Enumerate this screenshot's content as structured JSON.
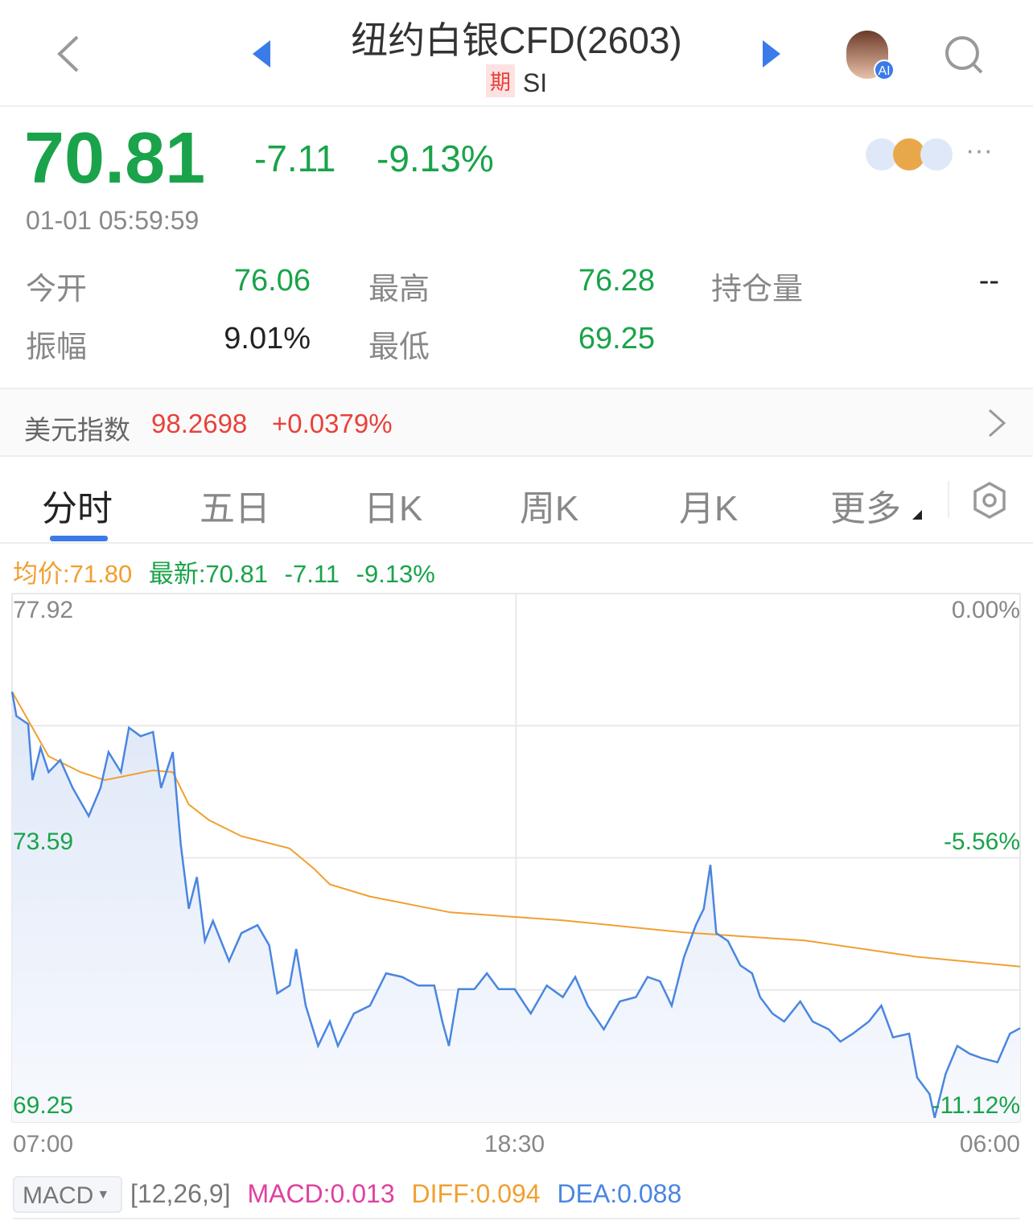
{
  "header": {
    "title": "纽约白银CFD(2603)",
    "badge": "期",
    "code": "SI",
    "icons": [
      "back-icon",
      "prev-arrow-icon",
      "next-arrow-icon",
      "ai-avatar",
      "search-icon"
    ],
    "ai_label": "AI"
  },
  "quote": {
    "price": "70.81",
    "change": "-7.11",
    "change_pct": "-9.13%",
    "time": "01-01 05:59:59"
  },
  "stats": {
    "open_label": "今开",
    "open": "76.06",
    "high_label": "最高",
    "high": "76.28",
    "oi_label": "持仓量",
    "oi": "--",
    "amp_label": "振幅",
    "amp": "9.01%",
    "low_label": "最低",
    "low": "69.25"
  },
  "index": {
    "label": "美元指数",
    "value": "98.2698",
    "change": "+0.0379%"
  },
  "tabs": [
    {
      "label": "分时"
    },
    {
      "label": "五日"
    },
    {
      "label": "日K"
    },
    {
      "label": "周K"
    },
    {
      "label": "月K"
    },
    {
      "label": "更多"
    }
  ],
  "legend": {
    "avg": "均价:71.80",
    "last": "最新:70.81",
    "chg": "-7.11",
    "pct": "-9.13%"
  },
  "colors": {
    "up": "#e8413b",
    "down": "#1aa34a",
    "price_line": "#4a86e0",
    "avg_line": "#f0a030",
    "accent": "#3a7bea"
  },
  "chart_data": {
    "type": "line",
    "y_ticks_left": [
      "77.92",
      "73.59",
      "69.25"
    ],
    "y_ticks_right": [
      "0.00%",
      "-5.56%",
      "-11.12%"
    ],
    "x_ticks": [
      "07:00",
      "18:30",
      "06:00"
    ],
    "ylim": [
      69.25,
      77.92
    ],
    "xlim": [
      "07:00",
      "06:00"
    ],
    "grid": true,
    "series": [
      {
        "name": "最新",
        "points": [
          [
            "07:00",
            76.31
          ],
          [
            "07:06",
            75.91
          ],
          [
            "07:22",
            75.78
          ],
          [
            "07:28",
            74.86
          ],
          [
            "07:39",
            75.39
          ],
          [
            "07:50",
            74.99
          ],
          [
            "08:06",
            75.19
          ],
          [
            "08:23",
            74.73
          ],
          [
            "08:45",
            74.27
          ],
          [
            "09:01",
            74.73
          ],
          [
            "09:12",
            75.32
          ],
          [
            "09:29",
            74.99
          ],
          [
            "09:40",
            75.72
          ],
          [
            "09:56",
            75.58
          ],
          [
            "10:13",
            75.65
          ],
          [
            "10:24",
            74.73
          ],
          [
            "10:40",
            75.32
          ],
          [
            "10:51",
            73.8
          ],
          [
            "11:02",
            72.75
          ],
          [
            "11:13",
            73.27
          ],
          [
            "11:24",
            72.22
          ],
          [
            "11:35",
            72.55
          ],
          [
            "11:57",
            71.89
          ],
          [
            "12:14",
            72.35
          ],
          [
            "12:36",
            72.48
          ],
          [
            "12:52",
            72.15
          ],
          [
            "13:03",
            71.36
          ],
          [
            "13:20",
            71.49
          ],
          [
            "13:29",
            72.09
          ],
          [
            "13:42",
            71.16
          ],
          [
            "13:59",
            70.5
          ],
          [
            "14:15",
            70.9
          ],
          [
            "14:26",
            70.5
          ],
          [
            "14:48",
            71.03
          ],
          [
            "15:10",
            71.16
          ],
          [
            "15:32",
            71.69
          ],
          [
            "15:54",
            71.63
          ],
          [
            "16:16",
            71.49
          ],
          [
            "16:38",
            71.49
          ],
          [
            "16:49",
            70.9
          ],
          [
            "16:58",
            70.5
          ],
          [
            "17:11",
            71.43
          ],
          [
            "17:33",
            71.43
          ],
          [
            "17:50",
            71.69
          ],
          [
            "18:06",
            71.43
          ],
          [
            "18:28",
            71.43
          ],
          [
            "18:50",
            71.03
          ],
          [
            "19:12",
            71.49
          ],
          [
            "19:34",
            71.3
          ],
          [
            "19:51",
            71.63
          ],
          [
            "20:08",
            71.16
          ],
          [
            "20:30",
            70.77
          ],
          [
            "20:52",
            71.23
          ],
          [
            "21:14",
            71.3
          ],
          [
            "21:30",
            71.63
          ],
          [
            "21:47",
            71.56
          ],
          [
            "22:03",
            71.16
          ],
          [
            "22:20",
            71.96
          ],
          [
            "22:36",
            72.48
          ],
          [
            "22:47",
            72.75
          ],
          [
            "22:56",
            73.47
          ],
          [
            "23:04",
            72.35
          ],
          [
            "23:20",
            72.22
          ],
          [
            "23:37",
            71.82
          ],
          [
            "23:53",
            71.69
          ],
          [
            "00:04",
            71.3
          ],
          [
            "00:21",
            71.03
          ],
          [
            "00:37",
            70.9
          ],
          [
            "00:59",
            71.23
          ],
          [
            "01:16",
            70.9
          ],
          [
            "01:38",
            70.77
          ],
          [
            "01:54",
            70.57
          ],
          [
            "02:11",
            70.7
          ],
          [
            "02:33",
            70.9
          ],
          [
            "02:50",
            71.16
          ],
          [
            "03:06",
            70.64
          ],
          [
            "03:28",
            70.7
          ],
          [
            "03:39",
            69.98
          ],
          [
            "03:56",
            69.71
          ],
          [
            "04:03",
            69.32
          ],
          [
            "04:18",
            70.04
          ],
          [
            "04:34",
            70.5
          ],
          [
            "04:51",
            70.37
          ],
          [
            "05:07",
            70.3
          ],
          [
            "05:29",
            70.23
          ],
          [
            "05:46",
            70.7
          ],
          [
            "06:00",
            70.79
          ]
        ]
      },
      {
        "name": "均价",
        "points": [
          [
            "07:00",
            76.31
          ],
          [
            "07:50",
            75.25
          ],
          [
            "08:34",
            74.99
          ],
          [
            "09:07",
            74.86
          ],
          [
            "10:13",
            75.02
          ],
          [
            "10:40",
            74.99
          ],
          [
            "11:02",
            74.46
          ],
          [
            "11:30",
            74.2
          ],
          [
            "12:14",
            73.94
          ],
          [
            "13:20",
            73.74
          ],
          [
            "13:53",
            73.41
          ],
          [
            "14:15",
            73.15
          ],
          [
            "15:10",
            72.95
          ],
          [
            "17:00",
            72.69
          ],
          [
            "19:34",
            72.56
          ],
          [
            "22:20",
            72.36
          ],
          [
            "01:05",
            72.23
          ],
          [
            "03:39",
            71.96
          ],
          [
            "06:00",
            71.8
          ]
        ]
      }
    ]
  },
  "macd": {
    "selector": "MACD",
    "params": "[12,26,9]",
    "macd": "MACD:0.013",
    "diff": "DIFF:0.094",
    "dea": "DEA:0.088"
  }
}
